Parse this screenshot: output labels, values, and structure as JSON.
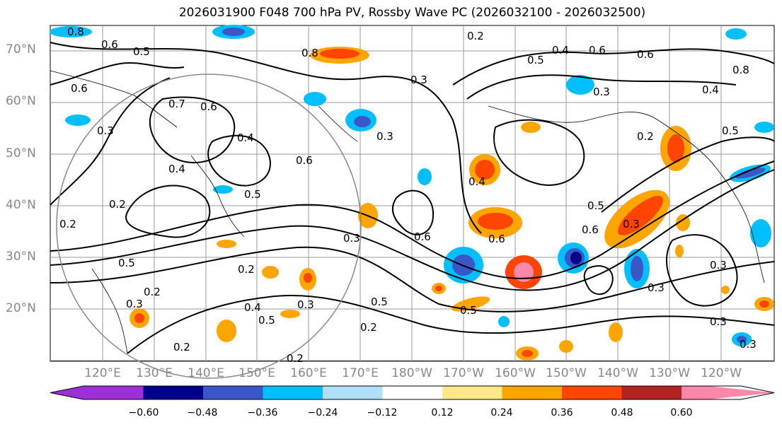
{
  "title": "2026031900 F048 700 hPa PV, Rossby Wave PC (2026032100 - 2026032500)",
  "latitude_labels": [
    "70°N",
    "60°N",
    "50°N",
    "40°N",
    "30°N",
    "20°N"
  ],
  "longitude_labels": [
    "120°E",
    "130°E",
    "140°E",
    "150°E",
    "160°E",
    "170°E",
    "180°W",
    "170°W",
    "160°W",
    "150°W",
    "140°W",
    "130°W",
    "120°W"
  ],
  "contour_labels": [
    "0.2",
    "0.3",
    "0.4",
    "0.5",
    "0.6",
    "0.7",
    "0.8"
  ],
  "colorbar": {
    "ticks": [
      "−0.60",
      "−0.48",
      "−0.36",
      "−0.24",
      "−0.12",
      "0.12",
      "0.24",
      "0.36",
      "0.48",
      "0.60"
    ],
    "colors": [
      "#9b30d6",
      "#00008b",
      "#3a56c8",
      "#00bfff",
      "#b0e0f8",
      "#ffffff",
      "#ffe88a",
      "#ffa500",
      "#ff4500",
      "#b22222",
      "#ff88aa"
    ]
  }
}
